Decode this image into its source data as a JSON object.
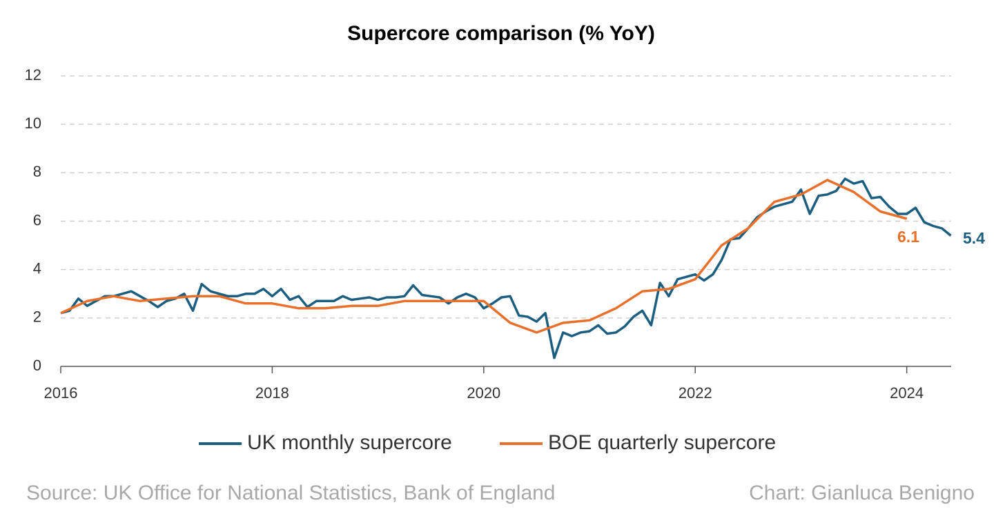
{
  "chart_data": {
    "type": "line",
    "title": "Supercore comparison (% YoY)",
    "series": [
      {
        "name": "UK monthly supercore",
        "color": "#1b5e80",
        "x": [
          2016.0,
          2016.083,
          2016.167,
          2016.25,
          2016.333,
          2016.417,
          2016.5,
          2016.583,
          2016.667,
          2016.75,
          2016.833,
          2016.917,
          2017.0,
          2017.083,
          2017.167,
          2017.25,
          2017.333,
          2017.417,
          2017.5,
          2017.583,
          2017.667,
          2017.75,
          2017.833,
          2017.917,
          2018.0,
          2018.083,
          2018.167,
          2018.25,
          2018.333,
          2018.417,
          2018.5,
          2018.583,
          2018.667,
          2018.75,
          2018.833,
          2018.917,
          2019.0,
          2019.083,
          2019.167,
          2019.25,
          2019.333,
          2019.417,
          2019.5,
          2019.583,
          2019.667,
          2019.75,
          2019.833,
          2019.917,
          2020.0,
          2020.083,
          2020.167,
          2020.25,
          2020.333,
          2020.417,
          2020.5,
          2020.583,
          2020.667,
          2020.75,
          2020.833,
          2020.917,
          2021.0,
          2021.083,
          2021.167,
          2021.25,
          2021.333,
          2021.417,
          2021.5,
          2021.583,
          2021.667,
          2021.75,
          2021.833,
          2021.917,
          2022.0,
          2022.083,
          2022.167,
          2022.25,
          2022.333,
          2022.417,
          2022.5,
          2022.583,
          2022.667,
          2022.75,
          2022.833,
          2022.917,
          2023.0,
          2023.083,
          2023.167,
          2023.25,
          2023.333,
          2023.417,
          2023.5,
          2023.583,
          2023.667,
          2023.75,
          2023.833,
          2023.917,
          2024.0,
          2024.083,
          2024.167,
          2024.25,
          2024.333,
          2024.417
        ],
        "values": [
          2.2,
          2.3,
          2.8,
          2.5,
          2.7,
          2.9,
          2.9,
          3.0,
          3.1,
          2.9,
          2.7,
          2.45,
          2.7,
          2.8,
          3.0,
          2.3,
          3.4,
          3.1,
          3.0,
          2.9,
          2.9,
          3.0,
          3.0,
          3.2,
          2.9,
          3.2,
          2.75,
          2.9,
          2.45,
          2.7,
          2.7,
          2.7,
          2.9,
          2.75,
          2.8,
          2.85,
          2.75,
          2.85,
          2.85,
          2.9,
          3.35,
          2.95,
          2.9,
          2.85,
          2.6,
          2.85,
          3.0,
          2.85,
          2.4,
          2.6,
          2.85,
          2.9,
          2.1,
          2.05,
          1.85,
          2.2,
          0.35,
          1.4,
          1.25,
          1.4,
          1.45,
          1.7,
          1.35,
          1.4,
          1.65,
          2.05,
          2.3,
          1.7,
          3.45,
          2.9,
          3.6,
          3.7,
          3.8,
          3.55,
          3.8,
          4.4,
          5.25,
          5.3,
          5.7,
          6.15,
          6.4,
          6.6,
          6.7,
          6.8,
          7.3,
          6.3,
          7.05,
          7.1,
          7.25,
          7.75,
          7.55,
          7.65,
          6.95,
          7.0,
          6.6,
          6.3,
          6.3,
          6.55,
          5.95,
          5.8,
          5.7,
          5.4
        ]
      },
      {
        "name": "BOE quarterly supercore",
        "color": "#e8702a",
        "x": [
          2016.0,
          2016.25,
          2016.5,
          2016.75,
          2017.0,
          2017.25,
          2017.5,
          2017.75,
          2018.0,
          2018.25,
          2018.5,
          2018.75,
          2019.0,
          2019.25,
          2019.5,
          2019.75,
          2020.0,
          2020.25,
          2020.5,
          2020.75,
          2021.0,
          2021.25,
          2021.5,
          2021.75,
          2022.0,
          2022.25,
          2022.5,
          2022.75,
          2023.0,
          2023.25,
          2023.5,
          2023.75,
          2024.0
        ],
        "values": [
          2.2,
          2.7,
          2.9,
          2.7,
          2.8,
          2.9,
          2.9,
          2.6,
          2.6,
          2.4,
          2.4,
          2.5,
          2.5,
          2.7,
          2.7,
          2.7,
          2.7,
          1.8,
          1.4,
          1.8,
          1.9,
          2.4,
          3.1,
          3.2,
          3.6,
          5.0,
          5.7,
          6.8,
          7.1,
          7.7,
          7.2,
          6.4,
          6.1
        ]
      }
    ],
    "xlim": [
      2016,
      2024.42
    ],
    "xticks": [
      2016,
      2018,
      2020,
      2022,
      2024
    ],
    "ylim": [
      0,
      12
    ],
    "yticks": [
      0,
      2,
      4,
      6,
      8,
      10,
      12
    ],
    "grid": true,
    "source": "Source: UK Office for National Statistics, Bank of England",
    "credit": "Chart: Gianluca Benigno"
  }
}
